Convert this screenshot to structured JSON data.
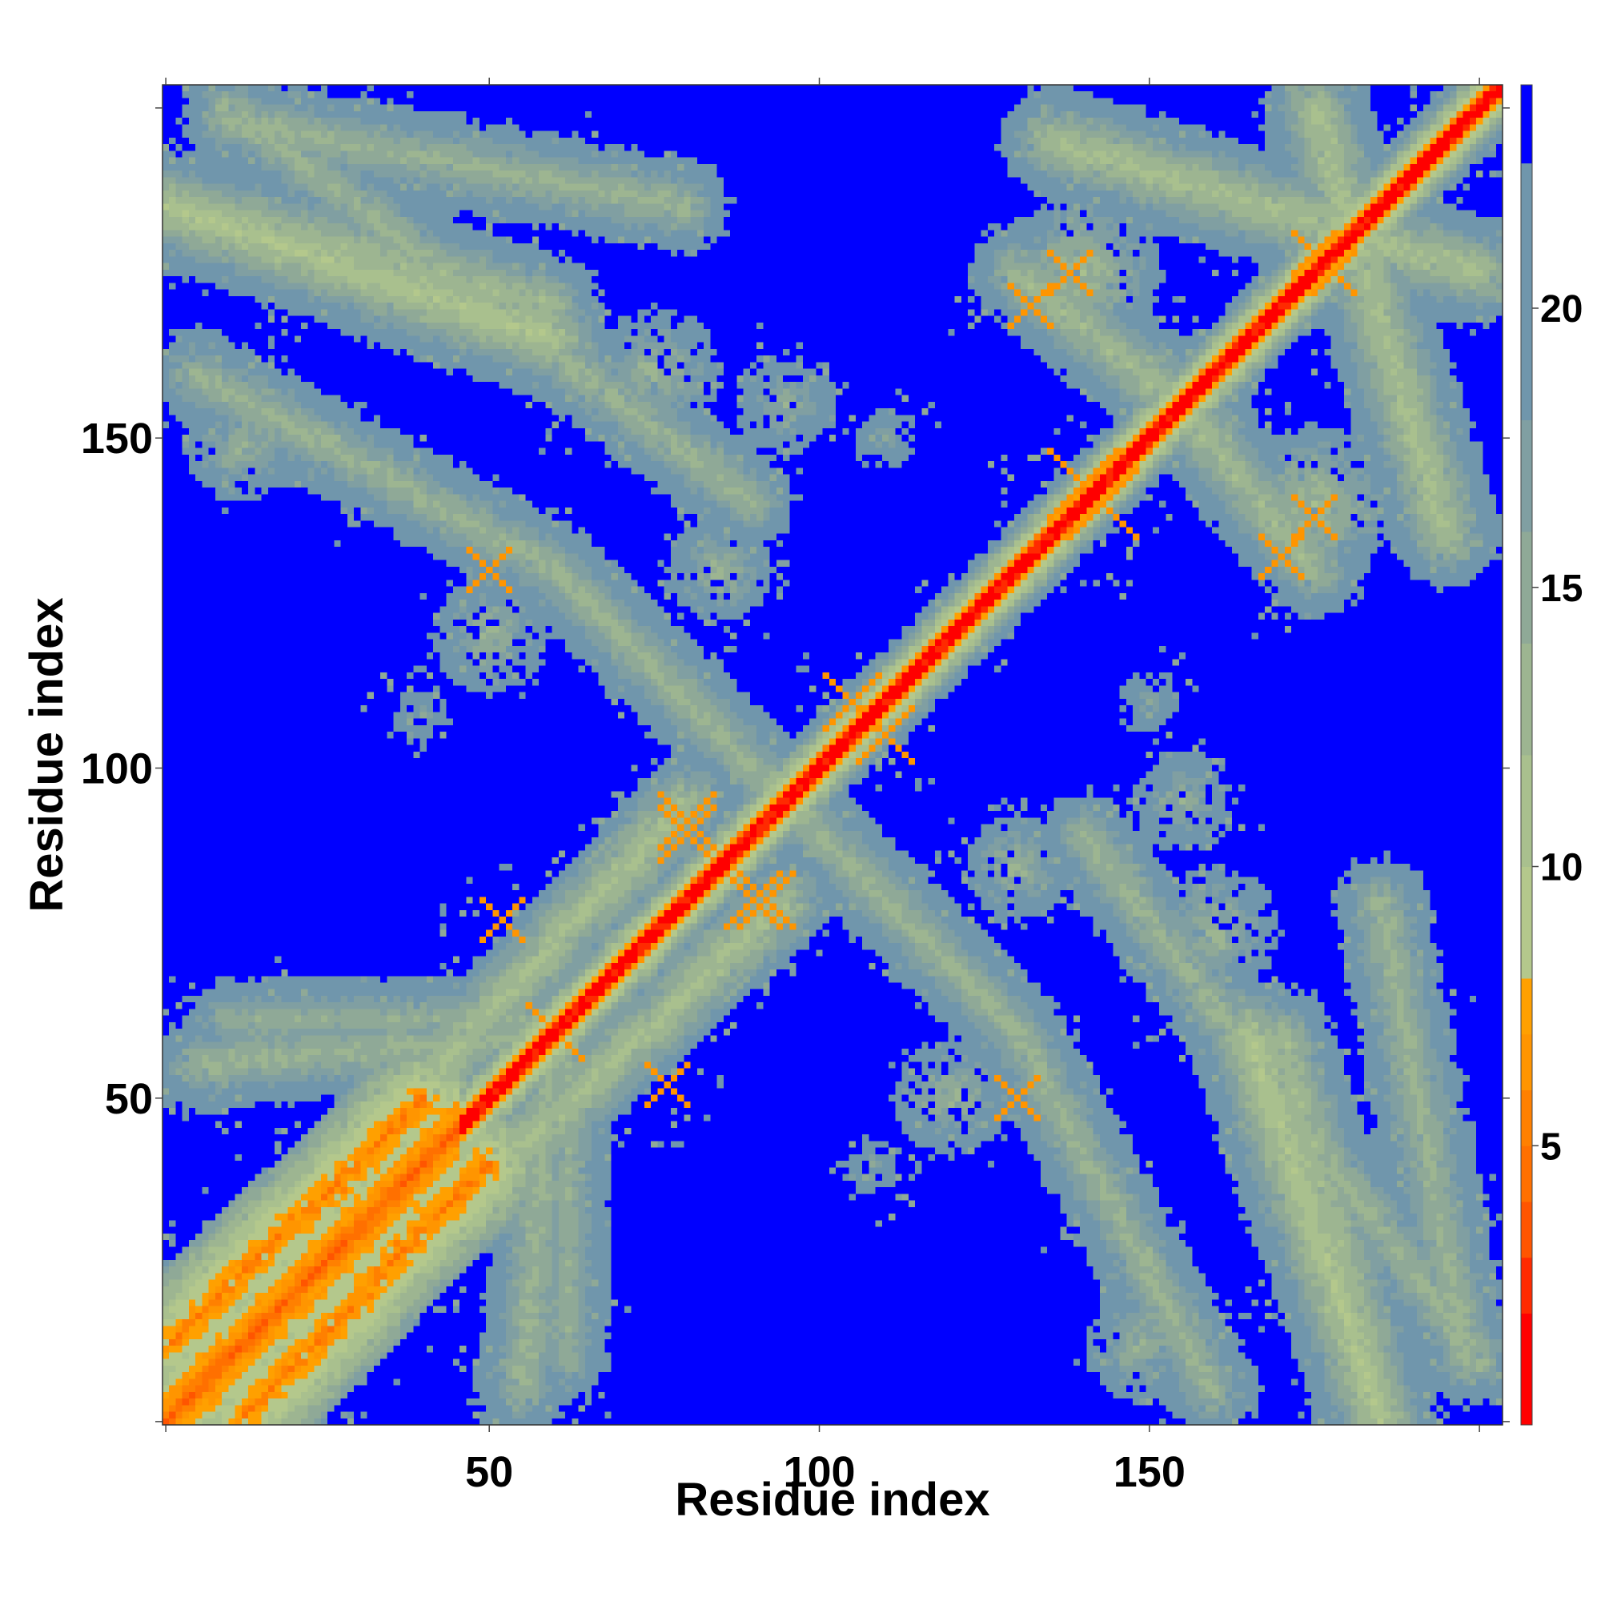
{
  "chart_data": {
    "type": "heatmap",
    "title": "",
    "xlabel": "Residue index",
    "ylabel": "Residue index",
    "x_range": [
      1,
      203
    ],
    "y_range": [
      1,
      203
    ],
    "x_ticks": [
      50,
      100,
      150
    ],
    "y_ticks": [
      50,
      100,
      150
    ],
    "x_tick_labels": [
      "50",
      "100",
      "150"
    ],
    "y_tick_labels": [
      "50",
      "100",
      "150"
    ],
    "grid": false,
    "colorbar": {
      "range": [
        0,
        24
      ],
      "ticks": [
        5,
        10,
        15,
        20
      ],
      "tick_labels": [
        "5",
        "10",
        "15",
        "20"
      ],
      "bands": [
        {
          "min": 0,
          "max": 2,
          "color": "#ff0000"
        },
        {
          "min": 2,
          "max": 3,
          "color": "#ff2a00"
        },
        {
          "min": 3,
          "max": 4,
          "color": "#ff5500"
        },
        {
          "min": 4,
          "max": 5,
          "color": "#ff7000"
        },
        {
          "min": 5,
          "max": 6,
          "color": "#ff8000"
        },
        {
          "min": 6,
          "max": 7,
          "color": "#ff9500"
        },
        {
          "min": 7,
          "max": 8,
          "color": "#ffa000"
        },
        {
          "min": 8,
          "max": 10,
          "color": "#b4c88c"
        },
        {
          "min": 10,
          "max": 12,
          "color": "#a9c08e"
        },
        {
          "min": 12,
          "max": 14,
          "color": "#9db591"
        },
        {
          "min": 14,
          "max": 16,
          "color": "#8fa997"
        },
        {
          "min": 16,
          "max": 18,
          "color": "#809fa2"
        },
        {
          "min": 18,
          "max": 22.6,
          "color": "#7096ac"
        },
        {
          "min": 22.6,
          "max": 24,
          "color": "#0000ff"
        }
      ]
    },
    "background_color": "#0000ff",
    "diagonal_value": 0,
    "contact_features": [
      {
        "type": "band",
        "x1": 1,
        "y1": 12,
        "x2": 40,
        "y2": 50,
        "width": 3,
        "value": 4
      },
      {
        "type": "band",
        "x1": 40,
        "y1": 52,
        "x2": 80,
        "y2": 95,
        "width": 2,
        "value": 10
      },
      {
        "type": "band",
        "x1": 1,
        "y1": 185,
        "x2": 60,
        "y2": 165,
        "width": 4,
        "value": 9
      },
      {
        "type": "band",
        "x1": 10,
        "y1": 198,
        "x2": 80,
        "y2": 185,
        "width": 3,
        "value": 12
      },
      {
        "type": "band",
        "x1": 135,
        "y1": 195,
        "x2": 200,
        "y2": 175,
        "width": 4,
        "value": 10
      },
      {
        "type": "band",
        "x1": 130,
        "y1": 175,
        "x2": 160,
        "y2": 150,
        "width": 4,
        "value": 11
      },
      {
        "type": "band",
        "x1": 60,
        "y1": 130,
        "x2": 130,
        "y2": 60,
        "width": 3,
        "value": 12
      },
      {
        "type": "band",
        "x1": 140,
        "y1": 90,
        "x2": 200,
        "y2": 10,
        "width": 4,
        "value": 12
      },
      {
        "type": "band",
        "x1": 130,
        "y1": 60,
        "x2": 160,
        "y2": 5,
        "width": 3,
        "value": 12
      },
      {
        "type": "band",
        "x1": 170,
        "y1": 60,
        "x2": 185,
        "y2": 5,
        "width": 3,
        "value": 11
      },
      {
        "type": "band",
        "x1": 10,
        "y1": 62,
        "x2": 55,
        "y2": 62,
        "width": 2,
        "value": 13
      },
      {
        "type": "band",
        "x1": 55,
        "y1": 5,
        "x2": 60,
        "y2": 60,
        "width": 3,
        "value": 12
      },
      {
        "type": "blob",
        "x": 75,
        "y": 160,
        "r": 10,
        "value": 12
      },
      {
        "type": "blob",
        "x": 12,
        "y": 148,
        "r": 8,
        "value": 12
      },
      {
        "type": "blob",
        "x": 175,
        "y": 140,
        "r": 12,
        "value": 11
      },
      {
        "type": "blob",
        "x": 155,
        "y": 95,
        "r": 8,
        "value": 13
      },
      {
        "type": "blob",
        "x": 85,
        "y": 130,
        "r": 8,
        "value": 12
      },
      {
        "type": "blob",
        "x": 110,
        "y": 80,
        "r": 8,
        "value": 13
      },
      {
        "type": "blob",
        "x": 150,
        "y": 15,
        "r": 8,
        "value": 13
      },
      {
        "type": "blob",
        "x": 120,
        "y": 50,
        "r": 9,
        "value": 12
      },
      {
        "type": "blob",
        "x": 150,
        "y": 110,
        "r": 5,
        "value": 14
      },
      {
        "type": "blob",
        "x": 108,
        "y": 40,
        "r": 5,
        "value": 14
      },
      {
        "type": "cross",
        "x": 50,
        "y": 130,
        "r": 3,
        "value": 6
      },
      {
        "type": "cross",
        "x": 143,
        "y": 140,
        "r": 5,
        "value": 6
      },
      {
        "type": "cross",
        "x": 130,
        "y": 50,
        "r": 3,
        "value": 6
      },
      {
        "type": "cross",
        "x": 90,
        "y": 80,
        "r": 4,
        "value": 6
      },
      {
        "type": "cross",
        "x": 80,
        "y": 92,
        "r": 4,
        "value": 6
      },
      {
        "type": "cross",
        "x": 60,
        "y": 60,
        "r": 4,
        "value": 6
      },
      {
        "type": "cross",
        "x": 110,
        "y": 105,
        "r": 4,
        "value": 6
      },
      {
        "type": "cross",
        "x": 178,
        "y": 175,
        "r": 3,
        "value": 6
      },
      {
        "type": "cross",
        "x": 170,
        "y": 132,
        "r": 3,
        "value": 6
      },
      {
        "type": "cross",
        "x": 77,
        "y": 52,
        "r": 3,
        "value": 6
      },
      {
        "type": "cross",
        "x": 138,
        "y": 175,
        "r": 3,
        "value": 6
      }
    ]
  }
}
